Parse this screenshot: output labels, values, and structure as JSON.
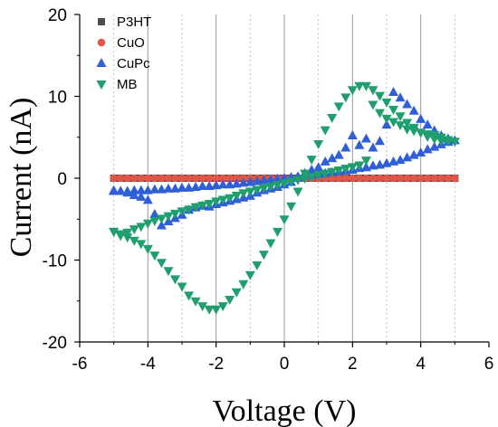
{
  "chart_data": {
    "type": "scatter",
    "xlabel": "Voltage (V)",
    "ylabel": "Current (nA)",
    "xlim": [
      -6,
      6
    ],
    "ylim": [
      -20,
      20
    ],
    "x_ticks": [
      "-6",
      "-4",
      "-2",
      "0",
      "2",
      "4",
      "6"
    ],
    "y_ticks": [
      "20",
      "10",
      "0",
      "-10",
      "-20"
    ],
    "grid": "vertical solid major and dotted minor gridlines",
    "legend_position": "top-left",
    "colors": {
      "P3HT": "#4d4d4d",
      "CuO": "#e0574a",
      "CuPc": "#2f5fd8",
      "MB": "#1f9e6e"
    },
    "series": [
      {
        "name": "P3HT",
        "marker": "square",
        "x": [
          -5.0,
          -4.8,
          -4.6,
          -4.4,
          -4.2,
          -4.0,
          -3.8,
          -3.6,
          -3.4,
          -3.2,
          -3.0,
          -2.8,
          -2.6,
          -2.4,
          -2.2,
          -2.0,
          -1.8,
          -1.6,
          -1.4,
          -1.2,
          -1.0,
          -0.8,
          -0.6,
          -0.4,
          -0.2,
          0.0,
          0.2,
          0.4,
          0.6,
          0.8,
          1.0,
          1.2,
          1.4,
          1.6,
          1.8,
          2.0,
          2.2,
          2.4,
          2.6,
          2.8,
          3.0,
          3.2,
          3.4,
          3.6,
          3.8,
          4.0,
          4.2,
          4.4,
          4.6,
          4.8,
          5.0
        ],
        "y": [
          0,
          0,
          0,
          0,
          0,
          0,
          0,
          0,
          0,
          0,
          0,
          0,
          0,
          0,
          0,
          0,
          0,
          0,
          0,
          0,
          0,
          0,
          0,
          0,
          0,
          0,
          0,
          0,
          0,
          0,
          0,
          0,
          0,
          0,
          0,
          0,
          0,
          0,
          0,
          0,
          0,
          0,
          0,
          0,
          0,
          0,
          0,
          0,
          0,
          0,
          0
        ]
      },
      {
        "name": "CuO",
        "marker": "circle",
        "x": [
          -5.0,
          -4.8,
          -4.6,
          -4.4,
          -4.2,
          -4.0,
          -3.8,
          -3.6,
          -3.4,
          -3.2,
          -3.0,
          -2.8,
          -2.6,
          -2.4,
          -2.2,
          -2.0,
          -1.8,
          -1.6,
          -1.4,
          -1.2,
          -1.0,
          -0.8,
          -0.6,
          -0.4,
          -0.2,
          0.0,
          0.2,
          0.4,
          0.6,
          0.8,
          1.0,
          1.2,
          1.4,
          1.6,
          1.8,
          2.0,
          2.2,
          2.4,
          2.6,
          2.8,
          3.0,
          3.2,
          3.4,
          3.6,
          3.8,
          4.0,
          4.2,
          4.4,
          4.6,
          4.8,
          5.0
        ],
        "y": [
          0,
          0,
          0,
          0,
          0,
          0,
          0,
          0,
          0,
          0,
          0,
          0,
          0,
          0,
          0,
          0,
          0,
          0,
          0,
          0,
          0,
          0,
          0,
          0,
          0,
          0,
          0,
          0,
          0,
          0,
          0,
          0,
          0,
          0,
          0,
          0,
          0,
          0,
          0,
          0,
          0,
          0,
          0,
          0,
          0,
          0,
          0,
          0,
          0,
          0,
          0
        ]
      },
      {
        "name": "CuPc",
        "marker": "triangle-up",
        "x": [
          -5.0,
          -4.8,
          -4.6,
          -4.4,
          -4.2,
          -4.0,
          -3.8,
          -3.6,
          -3.4,
          -3.2,
          -3.0,
          -2.8,
          -2.6,
          -2.4,
          -2.2,
          -2.0,
          -1.8,
          -1.6,
          -1.4,
          -1.2,
          -1.0,
          -0.8,
          -0.6,
          -0.4,
          -0.2,
          0.0,
          0.2,
          0.4,
          0.6,
          0.8,
          1.0,
          1.2,
          1.4,
          1.6,
          1.8,
          2.0,
          2.2,
          2.4,
          2.6,
          2.8,
          3.0,
          3.2,
          3.4,
          3.6,
          3.8,
          4.0,
          4.2,
          4.4,
          4.6,
          4.8,
          5.0,
          4.8,
          4.6,
          4.4,
          4.2,
          4.0,
          3.8,
          3.6,
          3.4,
          3.2,
          3.0,
          2.8,
          2.6,
          2.4,
          2.2,
          2.0,
          1.8,
          1.6,
          1.4,
          1.2,
          1.0,
          0.8,
          0.6,
          0.4,
          0.2,
          0.0,
          -0.2,
          -0.4,
          -0.6,
          -0.8,
          -1.0,
          -1.2,
          -1.4,
          -1.6,
          -1.8,
          -2.0,
          -2.2,
          -2.4,
          -2.6,
          -2.8,
          -3.0,
          -3.2,
          -3.4,
          -3.6,
          -3.8,
          -4.0,
          -4.2,
          -4.4,
          -4.6,
          -4.8,
          -5.0
        ],
        "y": [
          -1.6,
          -1.6,
          -1.6,
          -1.5,
          -1.5,
          -1.5,
          -1.4,
          -1.4,
          -1.3,
          -1.3,
          -1.2,
          -1.2,
          -1.1,
          -1.0,
          -1.0,
          -0.9,
          -0.8,
          -0.8,
          -0.7,
          -0.6,
          -0.5,
          -0.4,
          -0.3,
          -0.2,
          -0.1,
          0.0,
          0.1,
          0.2,
          0.3,
          0.4,
          0.5,
          0.6,
          0.7,
          0.8,
          0.9,
          1.0,
          1.2,
          1.3,
          1.5,
          1.6,
          1.8,
          2.0,
          2.2,
          2.5,
          2.8,
          3.1,
          3.5,
          3.8,
          4.1,
          4.4,
          4.6,
          4.8,
          5.2,
          5.8,
          6.5,
          7.2,
          8.2,
          9.0,
          9.8,
          10.5,
          6.5,
          4.5,
          3.7,
          4.8,
          4.0,
          5.2,
          3.7,
          2.8,
          2.4,
          2.0,
          1.3,
          1.0,
          0.6,
          0.0,
          -0.5,
          -0.8,
          -1.1,
          -1.3,
          -1.5,
          -1.8,
          -2.2,
          -2.4,
          -2.6,
          -2.8,
          -3.0,
          -3.2,
          -3.5,
          -3.4,
          -3.6,
          -3.9,
          -4.5,
          -4.9,
          -5.3,
          -5.8,
          -4.4,
          -2.7,
          -2.3,
          -2.1,
          -1.8,
          -1.6,
          -1.5
        ]
      },
      {
        "name": "MB",
        "marker": "triangle-down",
        "x": [
          -5.0,
          -4.8,
          -4.6,
          -4.4,
          -4.2,
          -4.0,
          -3.8,
          -3.6,
          -3.4,
          -3.2,
          -3.0,
          -2.8,
          -2.6,
          -2.4,
          -2.2,
          -2.0,
          -1.8,
          -1.6,
          -1.4,
          -1.2,
          -1.0,
          -0.8,
          -0.6,
          -0.4,
          -0.2,
          0.0,
          0.2,
          0.4,
          0.6,
          0.8,
          1.0,
          1.2,
          1.4,
          1.6,
          1.8,
          2.0,
          2.2,
          2.4,
          2.6,
          2.8,
          3.0,
          3.2,
          3.4,
          3.6,
          3.8,
          4.0,
          4.2,
          4.4,
          4.6,
          4.8,
          5.0,
          4.8,
          4.6,
          4.4,
          4.2,
          4.0,
          3.8,
          3.6,
          3.4,
          3.2,
          3.0,
          2.8,
          2.6,
          2.4,
          2.2,
          2.0,
          1.8,
          1.6,
          1.4,
          1.2,
          1.0,
          0.8,
          0.6,
          0.4,
          0.2,
          0.0,
          -0.2,
          -0.4,
          -0.6,
          -0.8,
          -1.0,
          -1.2,
          -1.4,
          -1.6,
          -1.8,
          -2.0,
          -2.2,
          -2.4,
          -2.6,
          -2.8,
          -3.0,
          -3.2,
          -3.4,
          -3.6,
          -3.8,
          -4.0,
          -4.2,
          -4.4,
          -4.6,
          -4.8,
          -5.0
        ],
        "y": [
          -6.5,
          -6.8,
          -7.2,
          -7.6,
          -8.0,
          -8.6,
          -9.4,
          -10.3,
          -11.3,
          -12.3,
          -13.2,
          -14.3,
          -15.0,
          -15.6,
          -16.0,
          -16.0,
          -15.6,
          -14.8,
          -13.9,
          -12.9,
          -11.8,
          -10.6,
          -9.3,
          -7.9,
          -6.5,
          -5.0,
          -3.4,
          -1.6,
          0.6,
          2.3,
          4.2,
          5.9,
          7.4,
          8.8,
          9.9,
          10.8,
          11.3,
          11.3,
          10.8,
          10.1,
          9.3,
          8.4,
          7.6,
          6.8,
          6.2,
          5.6,
          5.1,
          4.8,
          4.6,
          4.5,
          4.5,
          4.7,
          5.0,
          5.3,
          5.4,
          5.6,
          5.8,
          6.0,
          6.5,
          6.9,
          7.3,
          8.0,
          9.0,
          2.2,
          1.6,
          1.4,
          1.2,
          1.0,
          0.8,
          0.6,
          0.4,
          0.2,
          0.0,
          -0.2,
          -0.4,
          -0.6,
          -0.8,
          -1.0,
          -1.2,
          -1.4,
          -1.6,
          -1.8,
          -2.1,
          -2.4,
          -2.6,
          -2.8,
          -3.1,
          -3.3,
          -3.5,
          -3.8,
          -4.0,
          -4.3,
          -4.6,
          -4.9,
          -5.2,
          -5.5,
          -5.9,
          -6.2,
          -6.6,
          -7.0,
          -6.5
        ]
      }
    ]
  }
}
